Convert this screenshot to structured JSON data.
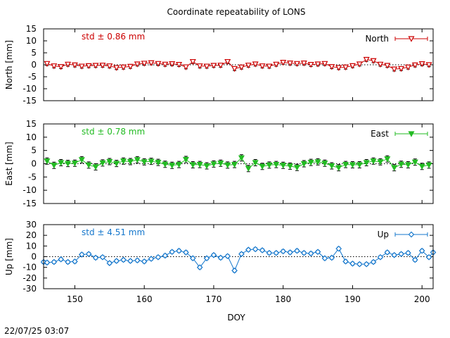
{
  "title": "Coordinate repeatability of LONS",
  "xlabel": "DOY",
  "timestamp": "22/07/25 03:07",
  "x_ticks": [
    150,
    160,
    170,
    180,
    190,
    200
  ],
  "colors": {
    "north": "#cc0000",
    "east": "#22bb22",
    "up": "#1577cc",
    "error_bars": "#000000"
  },
  "chart_data": [
    {
      "type": "line",
      "name": "North",
      "legend": "North",
      "legend_position": "top-right",
      "marker": "triangle-down-open",
      "std_label": "std ± 0.86 mm",
      "ylabel": "North [mm]",
      "xlim": [
        145.5,
        201.6
      ],
      "ylim": [
        -15,
        15
      ],
      "y_ticks": [
        -15,
        -10,
        -5,
        0,
        5,
        10,
        15
      ],
      "x": [
        146,
        147,
        148,
        149,
        150,
        151,
        152,
        153,
        154,
        155,
        156,
        157,
        158,
        159,
        160,
        161,
        162,
        163,
        164,
        165,
        166,
        167,
        168,
        169,
        170,
        171,
        172,
        173,
        174,
        175,
        176,
        177,
        178,
        179,
        180,
        181,
        182,
        183,
        184,
        185,
        186,
        187,
        188,
        189,
        190,
        191,
        192,
        193,
        194,
        195,
        196,
        197,
        198,
        199,
        200,
        201
      ],
      "y": [
        0.5,
        -0.5,
        -0.8,
        0.2,
        -0.1,
        -0.6,
        -0.4,
        -0.3,
        -0.2,
        -0.5,
        -1.2,
        -1.0,
        -0.7,
        0.3,
        0.6,
        0.8,
        0.5,
        0.2,
        0.4,
        0.1,
        -0.9,
        1.3,
        -0.5,
        -0.6,
        -0.3,
        -0.2,
        1.3,
        -1.6,
        -1.0,
        -0.2,
        0.3,
        -0.5,
        -0.6,
        0.2,
        1.0,
        0.7,
        0.5,
        0.7,
        0.1,
        0.3,
        0.5,
        -0.8,
        -1.2,
        -1.0,
        -0.4,
        0.3,
        2.2,
        1.7,
        0.2,
        -0.3,
        -1.8,
        -1.6,
        -1.0,
        -0.1,
        0.4,
        0.0
      ],
      "error": 0.8
    },
    {
      "type": "line",
      "name": "East",
      "legend": "East",
      "legend_position": "top-right",
      "marker": "triangle-down-filled",
      "std_label": "std ± 0.78 mm",
      "ylabel": "East [mm]",
      "xlim": [
        145.5,
        201.6
      ],
      "ylim": [
        -15,
        15
      ],
      "y_ticks": [
        -15,
        -10,
        -5,
        0,
        5,
        10,
        15
      ],
      "x": [
        146,
        147,
        148,
        149,
        150,
        151,
        152,
        153,
        154,
        155,
        156,
        157,
        158,
        159,
        160,
        161,
        162,
        163,
        164,
        165,
        166,
        167,
        168,
        169,
        170,
        171,
        172,
        173,
        174,
        175,
        176,
        177,
        178,
        179,
        180,
        181,
        182,
        183,
        184,
        185,
        186,
        187,
        188,
        189,
        190,
        191,
        192,
        193,
        194,
        195,
        196,
        197,
        198,
        199,
        200,
        201
      ],
      "y": [
        1.0,
        -0.6,
        0.4,
        0.1,
        0.2,
        1.5,
        -0.5,
        -1.2,
        0.3,
        0.8,
        0.1,
        1.0,
        0.8,
        1.5,
        0.7,
        0.9,
        0.5,
        -0.2,
        -0.6,
        -0.3,
        1.6,
        -0.4,
        -0.3,
        -0.8,
        -0.1,
        0.2,
        -0.5,
        -0.3,
        2.2,
        -1.8,
        0.4,
        -1.0,
        -0.5,
        -0.3,
        -0.6,
        -0.9,
        -1.4,
        0.0,
        0.5,
        0.7,
        0.2,
        -0.8,
        -1.5,
        -0.3,
        -0.4,
        -0.4,
        0.4,
        1.0,
        0.7,
        1.8,
        -1.5,
        -0.2,
        -0.4,
        0.6,
        -1.0,
        -0.5
      ],
      "error": 1.2
    },
    {
      "type": "line",
      "name": "Up",
      "legend": "Up",
      "legend_position": "top-right",
      "marker": "diamond-open",
      "std_label": "std ± 4.51 mm",
      "ylabel": "Up [mm]",
      "xlim": [
        145.5,
        201.6
      ],
      "ylim": [
        -30,
        30
      ],
      "y_ticks": [
        -30,
        -20,
        -10,
        0,
        10,
        20,
        30
      ],
      "x": [
        145.5,
        146,
        147,
        148,
        149,
        150,
        151,
        152,
        153,
        154,
        155,
        156,
        157,
        158,
        159,
        160,
        161,
        162,
        163,
        164,
        165,
        166,
        167,
        168,
        169,
        170,
        171,
        172,
        173,
        174,
        175,
        176,
        177,
        178,
        179,
        180,
        181,
        182,
        183,
        184,
        185,
        186,
        187,
        188,
        189,
        190,
        191,
        192,
        193,
        194,
        195,
        196,
        197,
        198,
        199,
        200,
        201,
        201.6
      ],
      "y": [
        -5.0,
        -5.5,
        -5.0,
        -2.5,
        -5.0,
        -4.5,
        2.0,
        2.5,
        -1.0,
        -0.5,
        -6.0,
        -4.0,
        -3.0,
        -4.0,
        -3.5,
        -4.5,
        -2.0,
        -0.5,
        1.0,
        4.5,
        5.5,
        4.0,
        -1.5,
        -10.0,
        -1.5,
        1.5,
        -1.0,
        0.5,
        -13.0,
        2.5,
        6.5,
        7.0,
        6.0,
        3.5,
        3.5,
        5.0,
        4.0,
        5.5,
        3.5,
        3.0,
        4.5,
        -1.5,
        -1.0,
        7.5,
        -4.5,
        -6.5,
        -7.0,
        -7.0,
        -5.0,
        -0.5,
        4.0,
        1.5,
        2.5,
        3.5,
        -3.0,
        5.5,
        -0.5,
        4.0
      ],
      "error": 1.5
    }
  ]
}
